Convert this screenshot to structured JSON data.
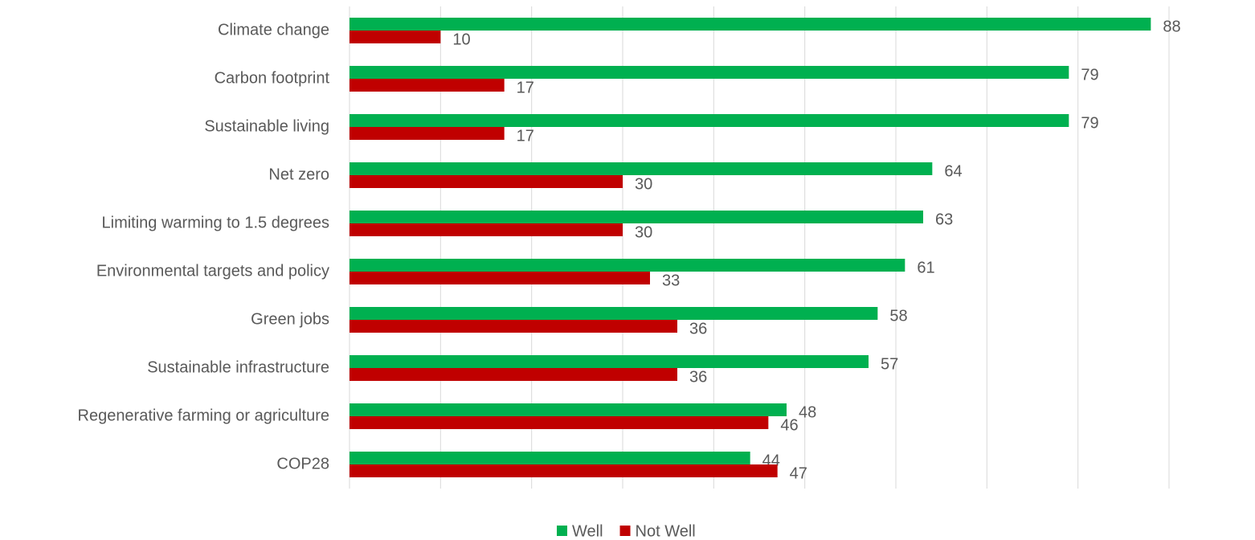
{
  "chart_data": {
    "type": "bar",
    "orientation": "horizontal",
    "categories": [
      "Climate change",
      "Carbon footprint",
      "Sustainable living",
      "Net zero",
      "Limiting warming to 1.5 degrees",
      "Environmental targets and policy",
      "Green jobs",
      "Sustainable infrastructure",
      "Regenerative farming or agriculture",
      "COP28"
    ],
    "series": [
      {
        "name": "Well",
        "color": "#00b050",
        "values": [
          88,
          79,
          79,
          64,
          63,
          61,
          58,
          57,
          48,
          44
        ]
      },
      {
        "name": "Not Well",
        "color": "#c00000",
        "values": [
          10,
          17,
          17,
          30,
          30,
          33,
          36,
          36,
          46,
          47
        ]
      }
    ],
    "xlim": [
      0,
      90
    ],
    "xticks": [
      0,
      10,
      20,
      30,
      40,
      50,
      60,
      70,
      80,
      90
    ],
    "grid": true,
    "legend": "bottom"
  }
}
